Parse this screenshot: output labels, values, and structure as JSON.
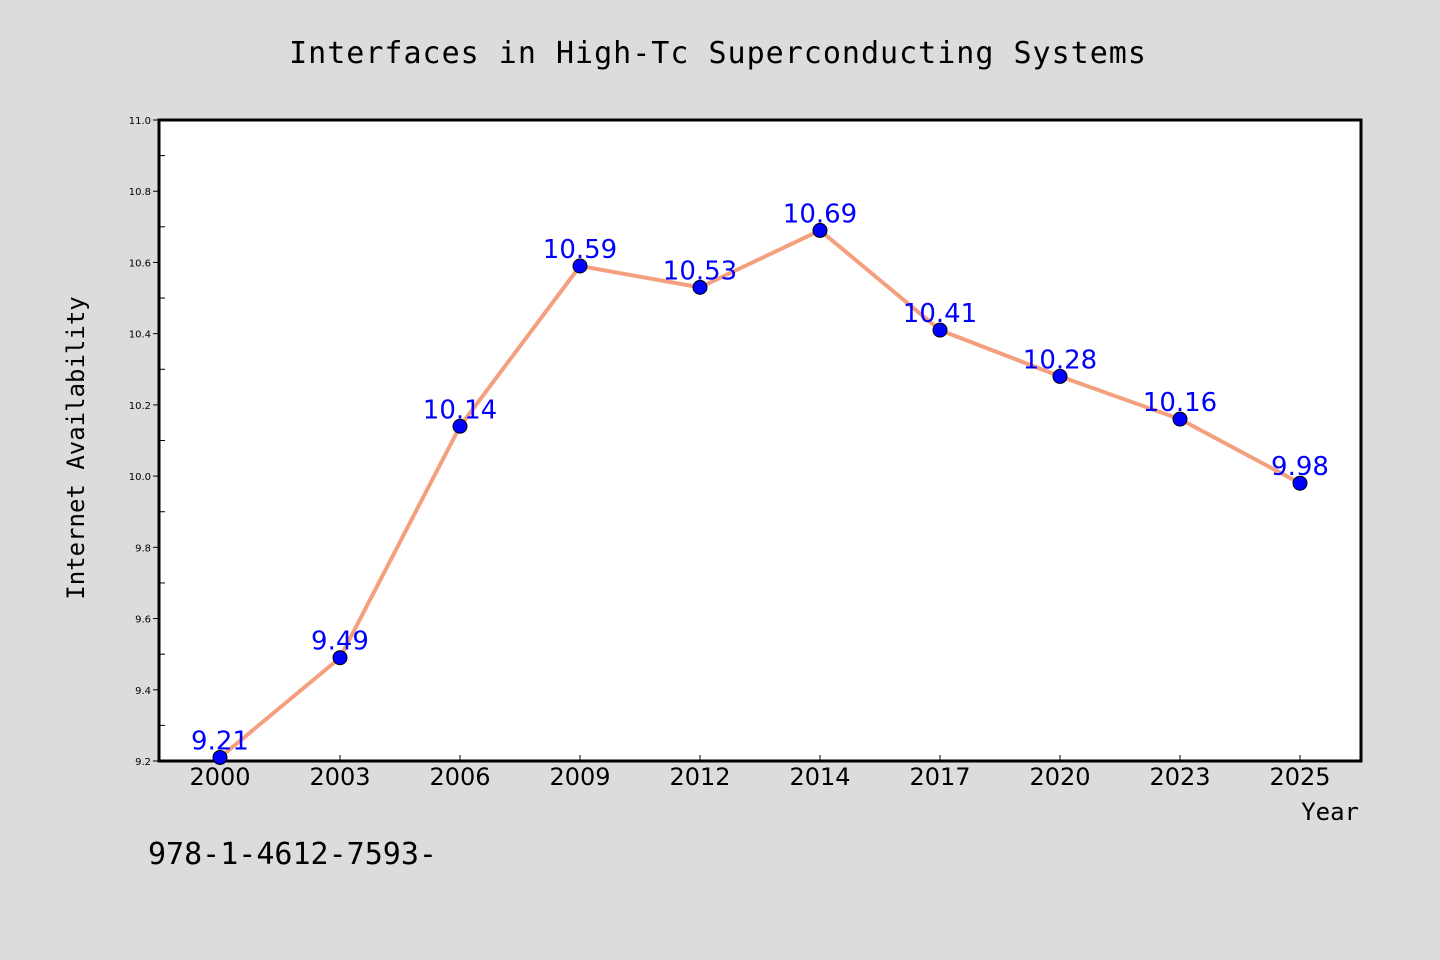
{
  "chart_data": {
    "type": "line",
    "title": "Interfaces in High-Tc Superconducting Systems",
    "xlabel": "Year",
    "ylabel": "Internet Availability",
    "categories": [
      "2000",
      "2003",
      "2006",
      "2009",
      "2012",
      "2014",
      "2017",
      "2020",
      "2023",
      "2025"
    ],
    "series": [
      {
        "values": [
          9.21,
          9.49,
          10.14,
          10.59,
          10.53,
          10.69,
          10.41,
          10.28,
          10.16,
          9.98
        ],
        "labels": [
          "9.21",
          "9.49",
          "10.14",
          "10.59",
          "10.53",
          "10.69",
          "10.41",
          "10.28",
          "10.16",
          "9.98"
        ],
        "line_color": "#f4a07f",
        "marker_color": "#0000ff"
      }
    ],
    "ylim": [
      9.2,
      11.0
    ],
    "yticks": [
      9.2,
      9.4,
      9.6,
      9.8,
      10.0,
      10.2,
      10.4,
      10.6,
      10.8,
      11.0
    ],
    "ytick_labels": [
      "9.2",
      "9.4",
      "9.6",
      "9.8",
      "10.0",
      "10.2",
      "10.4",
      "10.6",
      "10.8",
      "11.0"
    ],
    "grid": false,
    "label_color": "#0000ff"
  },
  "footer": {
    "text": "978-1-4612-7593-"
  },
  "colors": {
    "background": "#dcdcdc",
    "plot_background": "#ffffff"
  }
}
